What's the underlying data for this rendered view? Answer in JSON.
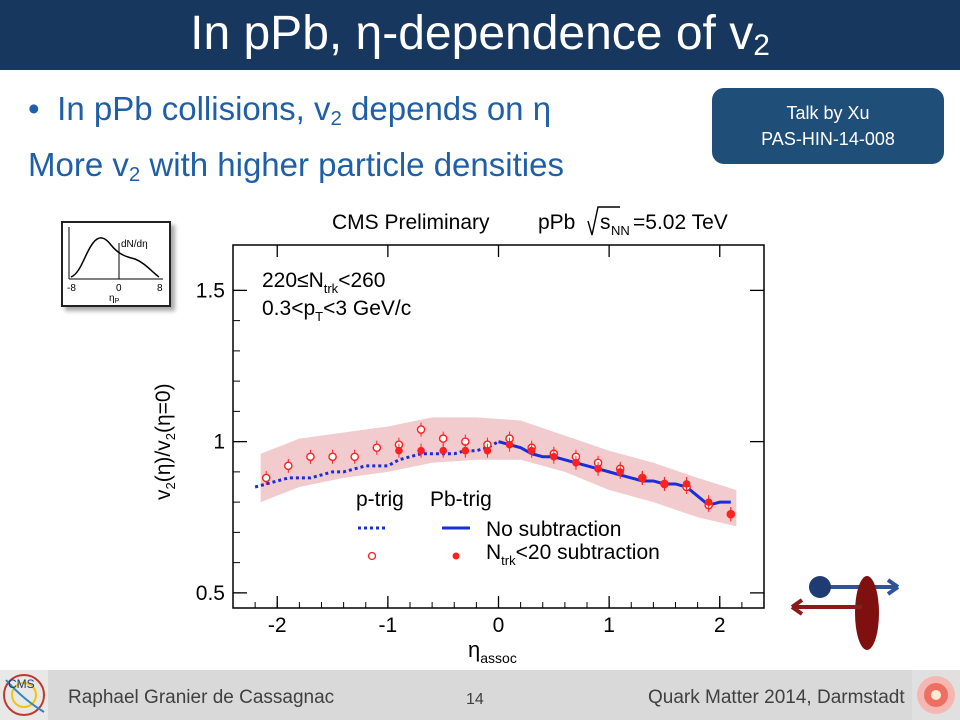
{
  "slide": {
    "title_main": "In pPb, η-dependence of v",
    "title_sub": "2",
    "bullet1_pre": "In pPb collisions, v",
    "bullet1_sub": "2",
    "bullet1_post": " depends on η",
    "bullet2_arrow": "",
    "bullet2_pre": "More v",
    "bullet2_sub": "2",
    "bullet2_post": " with higher particle densities",
    "talk_line1": "Talk by Xu",
    "talk_line2": "PAS-HIN-14-008"
  },
  "inset": {
    "label": "dN/dη",
    "ticks": [
      "-8",
      "0",
      "8"
    ],
    "xlabel_main": "η",
    "xlabel_sub": "P"
  },
  "footer": {
    "author": "Raphael Granier de Cassagnac",
    "page": "14",
    "conference": "Quark Matter 2014, Darmstadt",
    "logo_text": "CMS"
  },
  "colors": {
    "title_bg": "#17375e",
    "bullet_text": "#1f5fa8",
    "box_bg": "#1f4e79",
    "series_red": "#ff2020",
    "line_blue": "#1a2ed8",
    "band_pink": "#e8a0a8"
  },
  "chart_data": {
    "type": "scatter",
    "header_left": "CMS Preliminary",
    "header_right_pre": "pPb",
    "header_right_sub": "NN",
    "header_right_post": "=5.02 TeV",
    "annotation1_pre": "220≤N",
    "annotation1_sub": "trk",
    "annotation1_post": "<260",
    "annotation2_pre": "0.3<p",
    "annotation2_sub": "T",
    "annotation2_post": "<3 GeV/c",
    "ylabel": "v2(η)/v2(η=0)",
    "xlabel_main": "η",
    "xlabel_sub": "assoc",
    "xlim": [
      -2.4,
      2.4
    ],
    "ylim": [
      0.45,
      1.65
    ],
    "xticks": [
      "-2",
      "-1",
      "0",
      "1",
      "2"
    ],
    "yticks": [
      "0.5",
      "1",
      "1.5"
    ],
    "legend_col1": "p-trig",
    "legend_col2": "Pb-trig",
    "legend_row1": "No subtraction",
    "legend_row2_pre": "N",
    "legend_row2_sub": "trk",
    "legend_row2_post": "<20 subtraction",
    "series": [
      {
        "name": "p-trig, No subtraction",
        "style": "dotted-line",
        "x": [
          -2.2,
          -2.1,
          -2.0,
          -1.9,
          -1.8,
          -1.7,
          -1.6,
          -1.5,
          -1.4,
          -1.3,
          -1.2,
          -1.1,
          -1.0,
          -0.9,
          -0.8,
          -0.7,
          -0.6,
          -0.5,
          -0.4,
          -0.3,
          -0.2,
          -0.1,
          0.0
        ],
        "y": [
          0.85,
          0.86,
          0.87,
          0.88,
          0.88,
          0.88,
          0.89,
          0.9,
          0.9,
          0.91,
          0.92,
          0.92,
          0.92,
          0.94,
          0.95,
          0.96,
          0.96,
          0.96,
          0.96,
          0.97,
          0.97,
          0.98,
          1.0
        ]
      },
      {
        "name": "Pb-trig, No subtraction",
        "style": "solid-line",
        "x": [
          0.0,
          0.1,
          0.2,
          0.3,
          0.4,
          0.5,
          0.6,
          0.7,
          0.8,
          0.9,
          1.0,
          1.1,
          1.2,
          1.3,
          1.4,
          1.5,
          1.6,
          1.7,
          1.8,
          1.9,
          2.0,
          2.1
        ],
        "y": [
          1.0,
          0.99,
          0.98,
          0.96,
          0.95,
          0.95,
          0.94,
          0.93,
          0.92,
          0.91,
          0.9,
          0.89,
          0.88,
          0.87,
          0.87,
          0.86,
          0.86,
          0.85,
          0.82,
          0.79,
          0.8,
          0.8
        ]
      },
      {
        "name": "p-trig, Ntrk<20 subtraction",
        "style": "open-circle",
        "x": [
          -2.1,
          -1.9,
          -1.7,
          -1.5,
          -1.3,
          -1.1,
          -0.9,
          -0.7,
          -0.5,
          -0.3,
          -0.1,
          0.1,
          0.3,
          0.5,
          0.7,
          0.9,
          1.1,
          1.3,
          1.5,
          1.7,
          1.9,
          2.1
        ],
        "y": [
          0.88,
          0.92,
          0.95,
          0.95,
          0.95,
          0.98,
          0.99,
          1.04,
          1.01,
          1.0,
          0.99,
          1.01,
          0.98,
          0.96,
          0.95,
          0.93,
          0.91,
          0.88,
          0.86,
          0.85,
          0.79,
          0.76
        ]
      },
      {
        "name": "Pb-trig, Ntrk<20 subtraction",
        "style": "filled-circle",
        "x": [
          -0.9,
          -0.7,
          -0.5,
          -0.3,
          -0.1,
          0.1,
          0.3,
          0.5,
          0.7,
          0.9,
          1.1,
          1.3,
          1.5,
          1.7,
          1.9,
          2.1
        ],
        "y": [
          0.97,
          0.97,
          0.97,
          0.97,
          0.97,
          0.99,
          0.97,
          0.95,
          0.93,
          0.91,
          0.9,
          0.88,
          0.86,
          0.86,
          0.8,
          0.76
        ]
      }
    ],
    "band": {
      "x": [
        -2.15,
        -1.8,
        -1.4,
        -1.0,
        -0.6,
        -0.2,
        0.2,
        0.6,
        1.0,
        1.4,
        1.8,
        2.15
      ],
      "y_low": [
        0.8,
        0.85,
        0.88,
        0.9,
        0.93,
        0.94,
        0.94,
        0.9,
        0.84,
        0.8,
        0.75,
        0.72
      ],
      "y_high": [
        0.96,
        1.01,
        1.03,
        1.05,
        1.08,
        1.08,
        1.07,
        1.02,
        0.97,
        0.93,
        0.88,
        0.84
      ]
    }
  }
}
